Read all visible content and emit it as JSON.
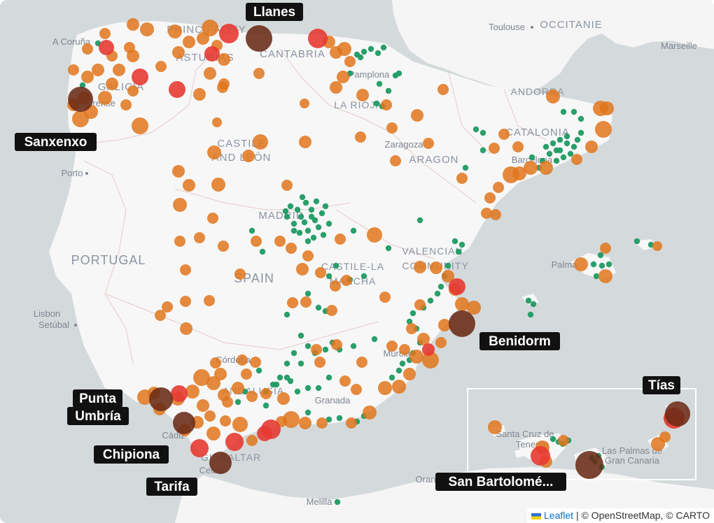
{
  "colors": {
    "sea": "#d4dadc",
    "land": "#f7f7f7",
    "green_point": "#1e9a63",
    "orange_point": "#e0761c",
    "red_point": "#e53a32",
    "dark_point": "#6a2a16",
    "callout_bg": "#111111",
    "inset_frame": "#ffffff"
  },
  "basemap_labels": [
    {
      "id": "principality",
      "text": "PRINCIPALITY"
    },
    {
      "id": "asturias",
      "text": "ASTURIAS"
    },
    {
      "id": "cantabria",
      "text": "CANTABRIA"
    },
    {
      "id": "galicia",
      "text": "GALICIA"
    },
    {
      "id": "la-rioja",
      "text": "LA RIOJA"
    },
    {
      "id": "castile-leon-1",
      "text": "CASTILE"
    },
    {
      "id": "castile-leon-2",
      "text": "AND LEÓN"
    },
    {
      "id": "aragon",
      "text": "ARAGON"
    },
    {
      "id": "andorra",
      "text": "ANDORRA"
    },
    {
      "id": "catalonia",
      "text": "CATALONIA"
    },
    {
      "id": "occitanie",
      "text": "OCCITANIE"
    },
    {
      "id": "madrid",
      "text": "MADRID"
    },
    {
      "id": "portugal",
      "text": "PORTUGAL"
    },
    {
      "id": "spain",
      "text": "SPAIN"
    },
    {
      "id": "valencian-1",
      "text": "VALENCIAN"
    },
    {
      "id": "valencian-2",
      "text": "COMMUNITY"
    },
    {
      "id": "castile-mancha-1",
      "text": "CASTILE-LA"
    },
    {
      "id": "castile-mancha-2",
      "text": "MANCHA"
    },
    {
      "id": "andalusia",
      "text": "ANDALUSIA"
    },
    {
      "id": "gibraltar",
      "text": "GIBRALTAR"
    }
  ],
  "cities": [
    {
      "id": "toulouse",
      "text": "Toulouse"
    },
    {
      "id": "marseille",
      "text": "Marseille"
    },
    {
      "id": "a-coruna",
      "text": "A Coruña"
    },
    {
      "id": "ourense",
      "text": "Ourense"
    },
    {
      "id": "pamplona",
      "text": "Pamplona"
    },
    {
      "id": "zaragoza",
      "text": "Zaragoza"
    },
    {
      "id": "barcelona",
      "text": "Barcelona"
    },
    {
      "id": "porto",
      "text": "Porto"
    },
    {
      "id": "palma",
      "text": "Palma"
    },
    {
      "id": "lisbon",
      "text": "Lisbon"
    },
    {
      "id": "setubal",
      "text": "Setúbal"
    },
    {
      "id": "cordoba",
      "text": "Córdoba"
    },
    {
      "id": "granada",
      "text": "Granada"
    },
    {
      "id": "murcia",
      "text": "Murcia"
    },
    {
      "id": "cadiz",
      "text": "Cádiz"
    },
    {
      "id": "ceuta",
      "text": "Ceuta"
    },
    {
      "id": "melilla",
      "text": "Melilla"
    },
    {
      "id": "oran",
      "text": "Oran"
    },
    {
      "id": "santa-cruz-1",
      "text": "Santa Cruz de"
    },
    {
      "id": "santa-cruz-2",
      "text": "Tenerife"
    },
    {
      "id": "las-palmas-1",
      "text": "Las Palmas de"
    },
    {
      "id": "las-palmas-2",
      "text": "Gran Canaria"
    }
  ],
  "callouts": [
    {
      "id": "llanes",
      "text": "Llanes"
    },
    {
      "id": "sanxenxo",
      "text": "Sanxenxo"
    },
    {
      "id": "benidorm",
      "text": "Benidorm"
    },
    {
      "id": "punta-1",
      "text": "Punta"
    },
    {
      "id": "punta-2",
      "text": "Umbría"
    },
    {
      "id": "chipiona",
      "text": "Chipiona"
    },
    {
      "id": "tarifa",
      "text": "Tarifa"
    },
    {
      "id": "tias",
      "text": "Tías"
    },
    {
      "id": "san-bartolome",
      "text": "San Bartolomé..."
    }
  ],
  "attribution": {
    "leaflet": "Leaflet",
    "rest": " | © OpenStreetMap, © CARTO"
  }
}
